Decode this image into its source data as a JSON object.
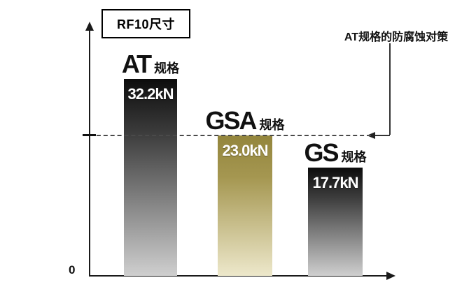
{
  "title_box": {
    "label": "RF10尺寸"
  },
  "annotation": {
    "text": "AT规格的防腐蚀对策"
  },
  "axes": {
    "origin_label": "0"
  },
  "colors": {
    "gray_top": "#0c0c0c",
    "gray_mid": "#3d3d3d",
    "gray_bottom": "#cfcfcf",
    "gold_top": "#93853c",
    "gold_mid": "#a59751",
    "gold_bottom": "#ede8cb",
    "axis": "#1a1a1a",
    "dashed_line": "#4a4a4a"
  },
  "chart_data": {
    "type": "bar",
    "title": "RF10尺寸",
    "categories": [
      "AT 规格",
      "GSA 规格",
      "GS 规格"
    ],
    "values": [
      32.2,
      23.0,
      17.7
    ],
    "unit": "kN",
    "ylim": [
      0,
      36
    ],
    "grid": false,
    "legend": false,
    "reference_line": {
      "value": 23.0,
      "style": "dashed",
      "label": "AT规格的防腐蚀对策"
    },
    "bars": [
      {
        "name_main": "AT",
        "name_sub": "规格",
        "value": 32.2,
        "value_label": "32.2kN",
        "color": "gray-gradient"
      },
      {
        "name_main": "GSA",
        "name_sub": "规格",
        "value": 23.0,
        "value_label": "23.0kN",
        "color": "gold-gradient"
      },
      {
        "name_main": "GS",
        "name_sub": "规格",
        "value": 17.7,
        "value_label": "17.7kN",
        "color": "gray-gradient"
      }
    ]
  }
}
